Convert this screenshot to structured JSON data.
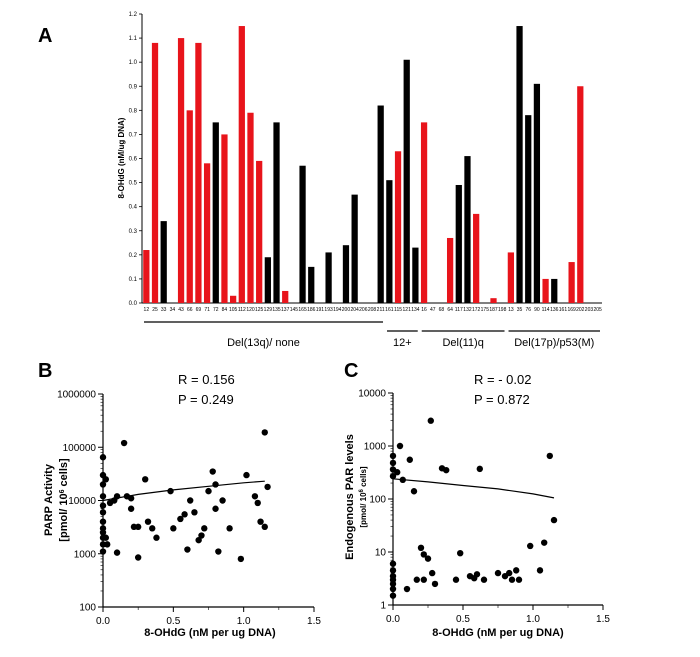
{
  "panels": {
    "a": {
      "letter": "A",
      "chart_data": {
        "type": "bar",
        "ylabel": "8-OHdG (nM/ug DNA)",
        "ylim": [
          0,
          1.2
        ],
        "yticks": [
          "0.0",
          "0.1",
          "0.2",
          "0.3",
          "0.4",
          "0.5",
          "0.6",
          "0.7",
          "0.8",
          "0.9",
          "1.0",
          "1.1",
          "1.2"
        ],
        "colors": {
          "red": "#e8141b",
          "black": "#000000"
        },
        "categories": [
          "12",
          "25",
          "33",
          "34",
          "43",
          "66",
          "69",
          "71",
          "72",
          "84",
          "105",
          "112",
          "120",
          "125",
          "129",
          "135",
          "137",
          "145",
          "165",
          "186",
          "191",
          "193",
          "194",
          "200",
          "204",
          "206",
          "208",
          "211",
          "161",
          "115",
          "121",
          "134",
          "16",
          "47",
          "68",
          "64",
          "117",
          "132",
          "172",
          "175",
          "187",
          "198",
          "13",
          "35",
          "76",
          "90",
          "114",
          "136",
          "161",
          "169",
          "202",
          "203",
          "205"
        ],
        "values": [
          0.22,
          1.08,
          0.34,
          0,
          1.1,
          0.8,
          1.08,
          0.58,
          0.75,
          0.7,
          0.03,
          1.15,
          0.79,
          0.59,
          0.19,
          0.75,
          0.05,
          0,
          0.57,
          0.15,
          0,
          0.21,
          0,
          0.24,
          0.45,
          0,
          0,
          0.82,
          0.51,
          0.63,
          1.01,
          0.23,
          0.75,
          0,
          0,
          0.27,
          0.49,
          0.61,
          0.37,
          0,
          0.02,
          0,
          0.21,
          1.15,
          0.78,
          0.91,
          0.1,
          0.1,
          0,
          0.17,
          0.9,
          0,
          0
        ],
        "bar_colors": [
          "red",
          "red",
          "black",
          "black",
          "red",
          "red",
          "red",
          "red",
          "black",
          "red",
          "red",
          "red",
          "red",
          "red",
          "black",
          "black",
          "red",
          "black",
          "black",
          "black",
          "black",
          "black",
          "black",
          "black",
          "black",
          "black",
          "black",
          "black",
          "black",
          "red",
          "black",
          "black",
          "red",
          "black",
          "black",
          "red",
          "black",
          "black",
          "red",
          "black",
          "red",
          "black",
          "red",
          "black",
          "black",
          "black",
          "red",
          "black",
          "black",
          "red",
          "red",
          "black",
          "black"
        ],
        "groups": [
          {
            "label": "Del(13q)/ none",
            "start": 0,
            "end": 27
          },
          {
            "label": "12+",
            "start": 28,
            "end": 31
          },
          {
            "label": "Del(11)q",
            "start": 32,
            "end": 41
          },
          {
            "label": "Del(17p)/p53(M)",
            "start": 42,
            "end": 52
          }
        ]
      }
    },
    "b": {
      "letter": "B",
      "stat_r": "R = 0.156",
      "stat_p": "P = 0.249",
      "chart_data": {
        "type": "scatter",
        "xlabel": "8-OHdG (nM per ug DNA)",
        "ylabel": "PARP Activity",
        "ylabel_unit_pre": "[pmol/ 10",
        "ylabel_unit_sup": "6",
        "ylabel_unit_post": " cells]",
        "xlim": [
          0,
          1.5
        ],
        "xticks": [
          "0.0",
          "0.5",
          "1.0",
          "1.5"
        ],
        "ylog": true,
        "ylim": [
          100,
          1000000
        ],
        "yticks": [
          "100",
          "1000",
          "10000",
          "100000",
          "1000000"
        ],
        "points": [
          [
            0.0,
            65000
          ],
          [
            0.0,
            30000
          ],
          [
            0.0,
            20000
          ],
          [
            0.0,
            12000
          ],
          [
            0.0,
            8000
          ],
          [
            0.0,
            6000
          ],
          [
            0.0,
            4000
          ],
          [
            0.0,
            3000
          ],
          [
            0.0,
            2500
          ],
          [
            0.0,
            2000
          ],
          [
            0.0,
            1500
          ],
          [
            0.0,
            1100
          ],
          [
            0.02,
            25000
          ],
          [
            0.02,
            2000
          ],
          [
            0.03,
            1500
          ],
          [
            0.05,
            9000
          ],
          [
            0.08,
            10000
          ],
          [
            0.1,
            1050
          ],
          [
            0.1,
            12000
          ],
          [
            0.15,
            120000
          ],
          [
            0.17,
            12000
          ],
          [
            0.2,
            11000
          ],
          [
            0.2,
            7000
          ],
          [
            0.22,
            3200
          ],
          [
            0.25,
            3200
          ],
          [
            0.25,
            850
          ],
          [
            0.3,
            25000
          ],
          [
            0.32,
            4000
          ],
          [
            0.35,
            3000
          ],
          [
            0.48,
            15000
          ],
          [
            0.5,
            3000
          ],
          [
            0.55,
            4500
          ],
          [
            0.58,
            5500
          ],
          [
            0.6,
            1200
          ],
          [
            0.62,
            10000
          ],
          [
            0.65,
            6000
          ],
          [
            0.68,
            1800
          ],
          [
            0.7,
            2200
          ],
          [
            0.72,
            3000
          ],
          [
            0.75,
            15000
          ],
          [
            0.78,
            35000
          ],
          [
            0.8,
            7000
          ],
          [
            0.8,
            20000
          ],
          [
            0.82,
            1100
          ],
          [
            0.85,
            10000
          ],
          [
            0.9,
            3000
          ],
          [
            0.98,
            800
          ],
          [
            1.02,
            30000
          ],
          [
            1.08,
            12000
          ],
          [
            1.1,
            9000
          ],
          [
            1.12,
            4000
          ],
          [
            1.15,
            3200
          ],
          [
            1.15,
            190000
          ],
          [
            1.17,
            18000
          ],
          [
            0.38,
            2000
          ]
        ],
        "fit_line": [
          [
            0.0,
            10000
          ],
          [
            0.25,
            13000
          ],
          [
            0.5,
            15800
          ],
          [
            0.75,
            18500
          ],
          [
            1.0,
            21500
          ],
          [
            1.15,
            23000
          ]
        ]
      }
    },
    "c": {
      "letter": "C",
      "stat_r": "R = - 0.02",
      "stat_p": "P = 0.872",
      "chart_data": {
        "type": "scatter",
        "xlabel": "8-OHdG (nM per ug DNA)",
        "ylabel": "Endogenous PAR levels",
        "ylabel_unit_pre": "[pmol/ 10",
        "ylabel_unit_sup": "6",
        "ylabel_unit_post": " cells]",
        "xlim": [
          0,
          1.5
        ],
        "xticks": [
          "0.0",
          "0.5",
          "1.0",
          "1.5"
        ],
        "ylog": true,
        "ylim": [
          1,
          10000
        ],
        "yticks": [
          "1",
          "10",
          "100",
          "1000",
          "10000"
        ],
        "points": [
          [
            0.0,
            650
          ],
          [
            0.0,
            480
          ],
          [
            0.0,
            360
          ],
          [
            0.0,
            270
          ],
          [
            0.0,
            6
          ],
          [
            0.0,
            4.5
          ],
          [
            0.0,
            3.5
          ],
          [
            0.0,
            3
          ],
          [
            0.0,
            2.5
          ],
          [
            0.0,
            2
          ],
          [
            0.0,
            1.5
          ],
          [
            0.03,
            320
          ],
          [
            0.05,
            1000
          ],
          [
            0.07,
            230
          ],
          [
            0.1,
            2
          ],
          [
            0.12,
            550
          ],
          [
            0.15,
            140
          ],
          [
            0.17,
            3
          ],
          [
            0.2,
            12
          ],
          [
            0.22,
            9
          ],
          [
            0.22,
            3
          ],
          [
            0.25,
            7.5
          ],
          [
            0.27,
            3000
          ],
          [
            0.28,
            4
          ],
          [
            0.3,
            2.5
          ],
          [
            0.35,
            380
          ],
          [
            0.38,
            350
          ],
          [
            0.45,
            3
          ],
          [
            0.48,
            9.5
          ],
          [
            0.55,
            3.5
          ],
          [
            0.58,
            3.2
          ],
          [
            0.6,
            3.8
          ],
          [
            0.62,
            370
          ],
          [
            0.65,
            3
          ],
          [
            0.75,
            4
          ],
          [
            0.8,
            3.5
          ],
          [
            0.83,
            4
          ],
          [
            0.85,
            3
          ],
          [
            0.88,
            4.5
          ],
          [
            0.9,
            3
          ],
          [
            0.98,
            13
          ],
          [
            1.05,
            4.5
          ],
          [
            1.08,
            15
          ],
          [
            1.12,
            650
          ],
          [
            1.15,
            40
          ]
        ],
        "fit_line": [
          [
            0.0,
            240
          ],
          [
            0.25,
            210
          ],
          [
            0.5,
            180
          ],
          [
            0.75,
            155
          ],
          [
            1.0,
            125
          ],
          [
            1.15,
            105
          ]
        ]
      }
    }
  }
}
